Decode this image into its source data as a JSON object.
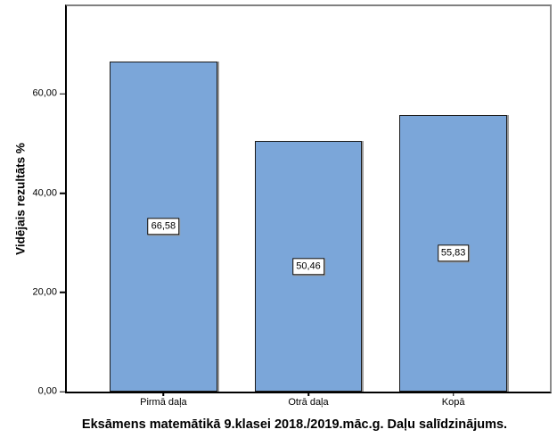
{
  "chart_data": {
    "type": "bar",
    "title": "Eksāmens matemātikā 9.klasei 2018./2019.māc.g. Daļu salīdzinājums.",
    "ylabel": "Vidējais rezultāts %",
    "xlabel": "",
    "categories": [
      "Pirmā daļa",
      "Otrā daļa",
      "Kopā"
    ],
    "values": [
      66.58,
      50.46,
      55.83
    ],
    "value_labels": [
      "66,58",
      "50,46",
      "55,83"
    ],
    "yticks": [
      {
        "value": 0,
        "label": "0,00"
      },
      {
        "value": 20,
        "label": "20,00"
      },
      {
        "value": 40,
        "label": "40,00"
      },
      {
        "value": 60,
        "label": "60,00"
      }
    ],
    "ylim": [
      0,
      77.7
    ],
    "grid": false,
    "legend": null,
    "colors": {
      "bar_fill": "#7BA6D9",
      "bar_border": "#1a1a1a",
      "bar_shadow": "#9b9b9b",
      "frame_gray": "#808080",
      "axis_black": "#000000",
      "background": "#ffffff"
    },
    "layout": {
      "bar_width_pct": 22.3,
      "category_spacing_pct": 30
    }
  }
}
